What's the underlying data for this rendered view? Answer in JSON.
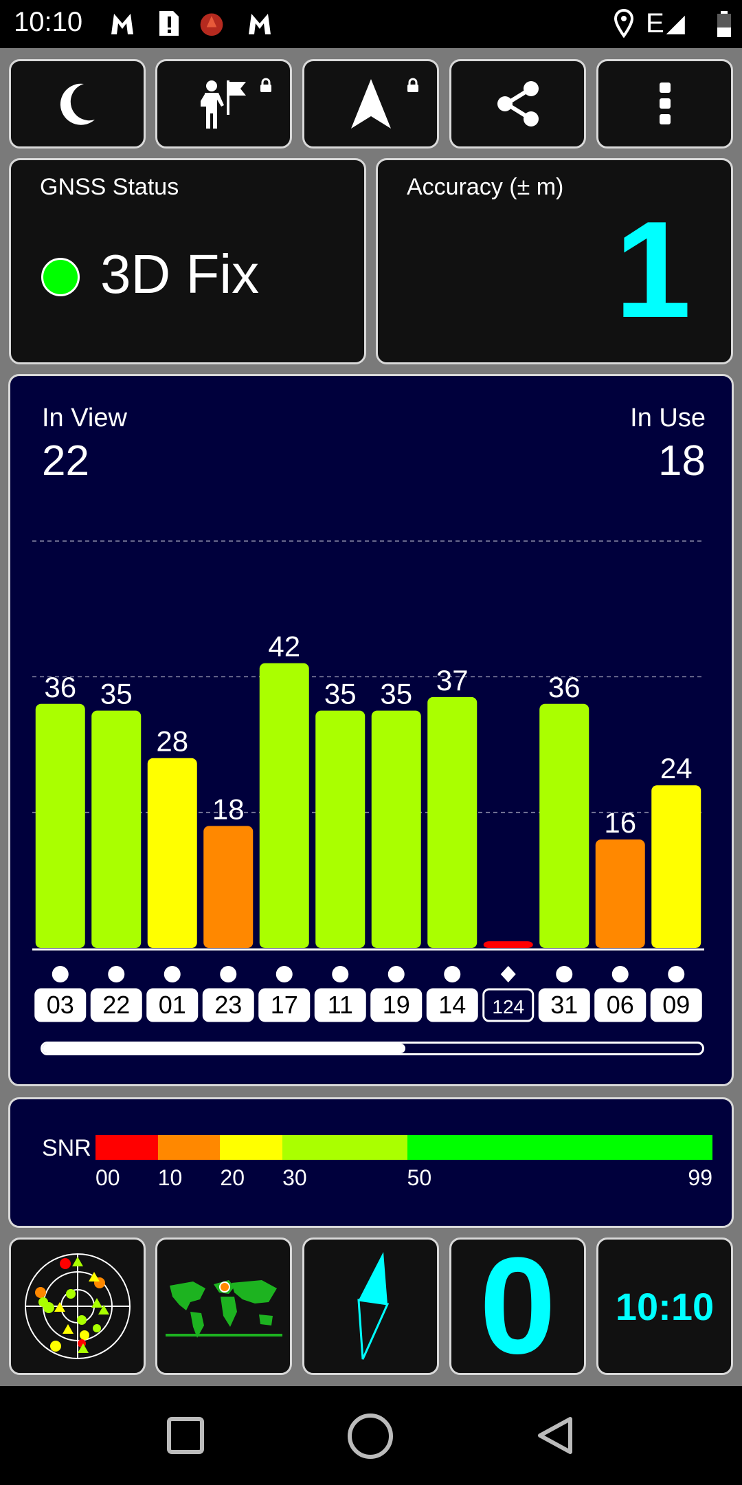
{
  "status_bar": {
    "time": "10:10",
    "network": "E",
    "icons_left": [
      "malwarebytes-icon",
      "sim-alert-icon",
      "app-red-icon",
      "malwarebytes-icon"
    ],
    "icons_right": [
      "location-pin-icon",
      "signal-icon",
      "battery-icon"
    ]
  },
  "toolbar": {
    "buttons": [
      {
        "name": "night-mode-button",
        "icon": "moon-icon"
      },
      {
        "name": "waypoint-button",
        "icon": "person-flag-icon",
        "locked": true
      },
      {
        "name": "navigate-button",
        "icon": "navigation-arrow-icon",
        "locked": true
      },
      {
        "name": "share-button",
        "icon": "share-icon"
      },
      {
        "name": "more-button",
        "icon": "more-vert-icon"
      }
    ]
  },
  "gnss_status": {
    "title": "GNSS Status",
    "value": "3D Fix",
    "indicator_color": "#00ff00"
  },
  "accuracy": {
    "title": "Accuracy (± m)",
    "value": "1"
  },
  "satellites": {
    "in_view_label": "In View",
    "in_view": "22",
    "in_use_label": "In Use",
    "in_use": "18",
    "visible_fraction": 0.55
  },
  "chart_data": {
    "type": "bar",
    "categories": [
      "03",
      "22",
      "01",
      "23",
      "17",
      "11",
      "19",
      "14",
      "124",
      "31",
      "06",
      "09"
    ],
    "values": [
      36,
      35,
      28,
      18,
      42,
      35,
      35,
      37,
      1,
      36,
      16,
      24
    ],
    "value_labels": [
      "36",
      "35",
      "28",
      "18",
      "42",
      "35",
      "35",
      "37",
      "",
      "36",
      "16",
      "24"
    ],
    "markers": [
      "circle",
      "circle",
      "circle",
      "circle",
      "circle",
      "circle",
      "circle",
      "circle",
      "diamond",
      "circle",
      "circle",
      "circle"
    ],
    "highlighted": [
      false,
      false,
      false,
      false,
      false,
      false,
      false,
      false,
      true,
      false,
      false,
      false
    ],
    "ylim": [
      0,
      60
    ],
    "gridlines": [
      20,
      40,
      60
    ],
    "color_scale": [
      {
        "min": 0,
        "color": "#ff0000"
      },
      {
        "min": 10,
        "color": "#ff8800"
      },
      {
        "min": 20,
        "color": "#ffff00"
      },
      {
        "min": 30,
        "color": "#aaff00"
      },
      {
        "min": 50,
        "color": "#00ff00"
      }
    ]
  },
  "snr_legend": {
    "label": "SNR",
    "ticks": [
      "00",
      "10",
      "20",
      "30",
      "50",
      "99"
    ],
    "segments": [
      {
        "from": 0,
        "to": 10,
        "color": "#ff0000"
      },
      {
        "from": 10,
        "to": 20,
        "color": "#ff8800"
      },
      {
        "from": 20,
        "to": 30,
        "color": "#ffff00"
      },
      {
        "from": 30,
        "to": 50,
        "color": "#aaff00"
      },
      {
        "from": 50,
        "to": 99,
        "color": "#00ff00"
      }
    ]
  },
  "bottom": {
    "speed": "0",
    "clock": "10:10",
    "tiles": [
      "sky-plot-icon",
      "world-map-icon",
      "compass-icon"
    ]
  }
}
